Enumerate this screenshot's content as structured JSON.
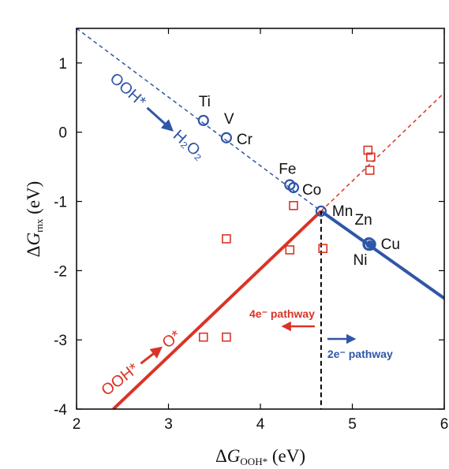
{
  "chart_data": {
    "type": "scatter",
    "xlabel": "ΔG_OOH* (eV)",
    "ylabel": "ΔG_rnx (eV)",
    "xlim": [
      2,
      6
    ],
    "ylim": [
      -4,
      1.5
    ],
    "xticks": [
      2,
      3,
      4,
      5,
      6
    ],
    "yticks": [
      -4,
      -3,
      -2,
      -1,
      0,
      1
    ],
    "grid": false,
    "colors": {
      "blue": "#2f56a8",
      "red": "#d93427",
      "black": "#000000"
    },
    "blue_line": {
      "description_color": "blue",
      "points": [
        [
          2.0,
          1.5
        ],
        [
          4.66,
          -1.14
        ],
        [
          6.0,
          -2.4
        ]
      ]
    },
    "red_line": {
      "description_color": "red",
      "points": [
        [
          2.4,
          -4.0
        ],
        [
          4.66,
          -1.14
        ],
        [
          6.0,
          0.57
        ]
      ]
    },
    "threshold_x": 4.66,
    "series": [
      {
        "marker": "open-circle",
        "color": "blue",
        "points": [
          {
            "label": "Ti",
            "x": 3.38,
            "y": 0.17
          },
          {
            "label": "V",
            "x": 3.63,
            "y": -0.08
          },
          {
            "label": "Cr",
            "x": 3.63,
            "y": -0.08
          },
          {
            "label": "Fe",
            "x": 4.32,
            "y": -0.76
          },
          {
            "label": "Co",
            "x": 4.36,
            "y": -0.8
          },
          {
            "label": "Mn",
            "x": 4.66,
            "y": -1.14
          },
          {
            "label": "Zn",
            "x": 5.18,
            "y": -1.61
          },
          {
            "label": "Cu",
            "x": 5.19,
            "y": -1.62
          },
          {
            "label": "Ni",
            "x": 5.18,
            "y": -1.62
          }
        ]
      },
      {
        "marker": "open-square",
        "color": "red",
        "points": [
          {
            "x": 3.38,
            "y": -2.96
          },
          {
            "x": 3.63,
            "y": -2.96
          },
          {
            "x": 3.63,
            "y": -1.54
          },
          {
            "x": 4.32,
            "y": -1.7
          },
          {
            "x": 4.36,
            "y": -1.06
          },
          {
            "x": 4.68,
            "y": -1.68
          },
          {
            "x": 5.17,
            "y": -0.26
          },
          {
            "x": 5.2,
            "y": -0.36
          },
          {
            "x": 5.19,
            "y": -0.55
          }
        ]
      }
    ],
    "annotations": {
      "ooh_to_h2o2": {
        "ooh": "OOH*",
        "product": "H₂O₂"
      },
      "ooh_to_o": {
        "ooh": "OOH*",
        "product": "O*"
      },
      "four_e": "4e⁻ pathway",
      "two_e": "2e⁻ pathway"
    }
  }
}
